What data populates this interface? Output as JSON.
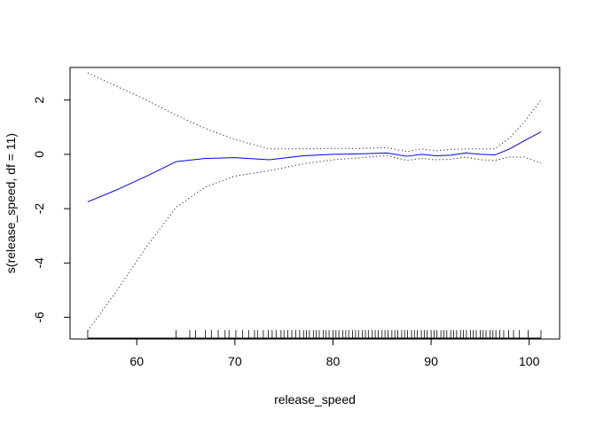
{
  "chart_data": {
    "type": "line",
    "xlabel": "release_speed",
    "ylabel": "s(release_speed, df = 11)",
    "xlim": [
      53.2,
      103.1
    ],
    "ylim": [
      -6.8,
      3.2
    ],
    "x_ticks": [
      60,
      70,
      80,
      90,
      100
    ],
    "y_ticks": [
      -6,
      -4,
      -2,
      0,
      2
    ],
    "grid": false,
    "legend": "none",
    "series": [
      {
        "role": "fit",
        "color": "#0000ff",
        "line_style": "solid",
        "x": [
          55,
          58,
          61,
          64,
          67,
          70,
          73.5,
          77,
          80,
          83,
          85.5,
          87.5,
          89,
          90.5,
          92,
          93.5,
          95,
          96.5,
          98,
          99.5,
          101.2
        ],
        "y": [
          -1.75,
          -1.3,
          -0.8,
          -0.27,
          -0.15,
          -0.12,
          -0.2,
          -0.05,
          0.0,
          0.02,
          0.05,
          -0.07,
          0.0,
          -0.05,
          -0.03,
          0.05,
          0.0,
          -0.02,
          0.2,
          0.5,
          0.83
        ]
      },
      {
        "role": "upper-band",
        "color": "#000000",
        "line_style": "dotted",
        "x": [
          55,
          58,
          61,
          64,
          67,
          70,
          73.5,
          77,
          80,
          83,
          85.5,
          87.5,
          89,
          90.5,
          92,
          93.5,
          95,
          96.5,
          98,
          99.5,
          101.2
        ],
        "y": [
          3.0,
          2.5,
          2.0,
          1.45,
          0.95,
          0.55,
          0.2,
          0.2,
          0.22,
          0.22,
          0.25,
          0.1,
          0.2,
          0.13,
          0.18,
          0.2,
          0.2,
          0.2,
          0.6,
          1.2,
          2.0
        ]
      },
      {
        "role": "lower-band",
        "color": "#000000",
        "line_style": "dotted",
        "x": [
          55,
          58,
          61,
          64,
          67,
          70,
          73.5,
          77,
          80,
          83,
          85.5,
          87.5,
          89,
          90.5,
          92,
          93.5,
          95,
          96.5,
          98,
          99.5,
          101.2
        ],
        "y": [
          -6.5,
          -5.0,
          -3.4,
          -1.95,
          -1.2,
          -0.8,
          -0.6,
          -0.35,
          -0.2,
          -0.12,
          -0.05,
          -0.22,
          -0.15,
          -0.2,
          -0.18,
          -0.1,
          -0.2,
          -0.22,
          -0.1,
          -0.1,
          -0.32
        ]
      }
    ],
    "rug": {
      "color": "#000000",
      "x": [
        55,
        64,
        65.4,
        66,
        67,
        67.6,
        68.3,
        69,
        69.4,
        70.1,
        70.8,
        71.4,
        72,
        72.3,
        72.9,
        73.4,
        73.8,
        74.2,
        74.7,
        75,
        75.4,
        75.8,
        76.2,
        76.6,
        77,
        77.3,
        77.6,
        78,
        78.3,
        78.6,
        79,
        79.3,
        79.6,
        80,
        80.3,
        80.6,
        81,
        81.3,
        81.6,
        82,
        82.3,
        82.6,
        83,
        83.3,
        83.6,
        84,
        84.3,
        84.6,
        85,
        85.3,
        85.6,
        86,
        86.3,
        86.6,
        87,
        87.3,
        87.6,
        88,
        88.3,
        88.6,
        89,
        89.3,
        89.6,
        90,
        90.3,
        90.6,
        91,
        91.3,
        91.6,
        92,
        92.3,
        92.6,
        93,
        93.3,
        93.6,
        94,
        94.3,
        94.6,
        95,
        95.3,
        95.6,
        96,
        96.3,
        96.6,
        97,
        97.4,
        97.9,
        98.4,
        99,
        99.9,
        101.2
      ]
    }
  }
}
